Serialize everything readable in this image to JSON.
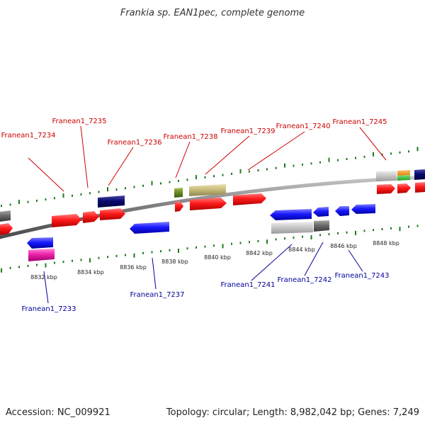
{
  "title": "Frankia sp. EAN1pec, complete genome",
  "footer": {
    "accession": "Accession: NC_009921",
    "summary": "Topology: circular; Length: 8,982,042 bp; Genes: 7,249"
  },
  "colors": {
    "forward_label": "#cc0000",
    "reverse_label": "#000099",
    "red_gene": "#ff0000",
    "blue_gene": "#1a1aff",
    "navy_gene": "#0a0a70",
    "tick": "#1e7b1e",
    "backbone": "#7a7a7a"
  },
  "tick_labels": [
    "8832 kbp",
    "8834 kbp",
    "8836 kbp",
    "8838 kbp",
    "8840 kbp",
    "8842 kbp",
    "8844 kbp",
    "8846 kbp",
    "8848 kbp"
  ],
  "forward_labels": [
    "Franean1_7234",
    "Franean1_7235",
    "Franean1_7236",
    "Franean1_7238",
    "Franean1_7239",
    "Franean1_7240",
    "Franean1_7245"
  ],
  "reverse_labels": [
    "Franean1_7233",
    "Franean1_7237",
    "Franean1_7241",
    "Franean1_7242",
    "Franean1_7243"
  ]
}
